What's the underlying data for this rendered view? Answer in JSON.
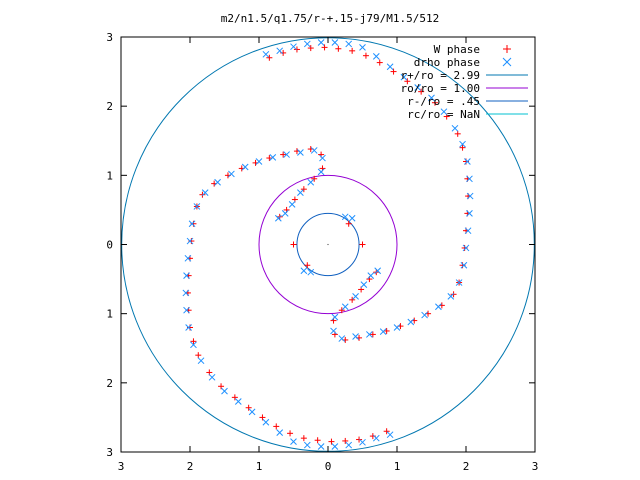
{
  "chart_data": {
    "type": "scatter",
    "title": "m2/n1.5/q1.75/r-+.15-j79/M1.5/512",
    "xlabel": "",
    "ylabel": "",
    "xlim": [
      -3,
      3
    ],
    "ylim": [
      -3,
      3
    ],
    "x_ticks": [
      -3,
      -2,
      -1,
      0,
      1,
      2,
      3
    ],
    "y_ticks": [
      -3,
      -2,
      -1,
      0,
      1,
      2,
      3
    ],
    "x_tick_labels": [
      "3",
      "2",
      "1",
      "0",
      "1",
      "2",
      "3"
    ],
    "y_tick_labels": [
      "3",
      "2",
      "1",
      "0",
      "1",
      "2",
      "3"
    ],
    "grid": false,
    "legend_position": "top-right",
    "legend": [
      {
        "label": "W phase",
        "kind": "marker",
        "marker": "plus",
        "color": "#ff0000"
      },
      {
        "label": "drho phase",
        "kind": "marker",
        "marker": "cross",
        "color": "#1e90ff"
      },
      {
        "label": "r+/ro = 2.99",
        "kind": "line",
        "color": "#0077b0"
      },
      {
        "label": "ro/ro = 1.00",
        "kind": "line",
        "color": "#9400d3"
      },
      {
        "label": "r-/ro = .45",
        "kind": "line",
        "color": "#1060c0"
      },
      {
        "label": "rc/ro = NaN",
        "kind": "line",
        "color": "#00c0d0"
      }
    ],
    "circles": [
      {
        "name": "r+/ro = 2.99",
        "radius": 2.99,
        "color": "#0077b0"
      },
      {
        "name": "ro/ro = 1.00",
        "radius": 1.0,
        "color": "#9400d3"
      },
      {
        "name": "r-/ro = .45",
        "radius": 0.45,
        "color": "#1060c0"
      }
    ],
    "series": [
      {
        "name": "W phase",
        "marker": "plus",
        "color": "#ff0000",
        "points": [
          [
            -0.85,
            2.7
          ],
          [
            -0.65,
            2.77
          ],
          [
            -0.45,
            2.82
          ],
          [
            -0.25,
            2.84
          ],
          [
            -0.05,
            2.85
          ],
          [
            0.15,
            2.83
          ],
          [
            0.35,
            2.8
          ],
          [
            0.55,
            2.73
          ],
          [
            0.75,
            2.63
          ],
          [
            0.95,
            2.5
          ],
          [
            1.15,
            2.36
          ],
          [
            1.35,
            2.21
          ],
          [
            1.55,
            2.05
          ],
          [
            1.72,
            1.85
          ],
          [
            1.88,
            1.6
          ],
          [
            1.95,
            1.4
          ],
          [
            2.0,
            1.2
          ],
          [
            2.02,
            0.95
          ],
          [
            2.03,
            0.7
          ],
          [
            2.02,
            0.45
          ],
          [
            2.0,
            0.2
          ],
          [
            1.98,
            -0.05
          ],
          [
            1.95,
            -0.3
          ],
          [
            1.9,
            -0.55
          ],
          [
            1.82,
            -0.72
          ],
          [
            1.65,
            -0.88
          ],
          [
            1.45,
            -1.0
          ],
          [
            1.25,
            -1.1
          ],
          [
            1.05,
            -1.18
          ],
          [
            0.85,
            -1.25
          ],
          [
            0.65,
            -1.3
          ],
          [
            0.45,
            -1.35
          ],
          [
            0.25,
            -1.38
          ],
          [
            0.1,
            -1.3
          ],
          [
            0.08,
            -1.1
          ],
          [
            0.2,
            -0.95
          ],
          [
            0.35,
            -0.8
          ],
          [
            0.48,
            -0.65
          ],
          [
            0.6,
            -0.5
          ],
          [
            0.7,
            -0.4
          ],
          [
            0.85,
            -2.7
          ],
          [
            0.65,
            -2.77
          ],
          [
            0.45,
            -2.82
          ],
          [
            0.25,
            -2.84
          ],
          [
            0.05,
            -2.85
          ],
          [
            -0.15,
            -2.83
          ],
          [
            -0.35,
            -2.8
          ],
          [
            -0.55,
            -2.73
          ],
          [
            -0.75,
            -2.63
          ],
          [
            -0.95,
            -2.5
          ],
          [
            -1.15,
            -2.36
          ],
          [
            -1.35,
            -2.21
          ],
          [
            -1.55,
            -2.05
          ],
          [
            -1.72,
            -1.85
          ],
          [
            -1.88,
            -1.6
          ],
          [
            -1.95,
            -1.4
          ],
          [
            -2.0,
            -1.2
          ],
          [
            -2.02,
            -0.95
          ],
          [
            -2.03,
            -0.7
          ],
          [
            -2.02,
            -0.45
          ],
          [
            -2.0,
            -0.2
          ],
          [
            -1.98,
            0.05
          ],
          [
            -1.95,
            0.3
          ],
          [
            -1.9,
            0.55
          ],
          [
            -1.82,
            0.72
          ],
          [
            -1.65,
            0.88
          ],
          [
            -1.45,
            1.0
          ],
          [
            -1.25,
            1.1
          ],
          [
            -1.05,
            1.18
          ],
          [
            -0.85,
            1.25
          ],
          [
            -0.65,
            1.3
          ],
          [
            -0.45,
            1.35
          ],
          [
            -0.25,
            1.38
          ],
          [
            -0.1,
            1.3
          ],
          [
            -0.08,
            1.1
          ],
          [
            -0.2,
            0.95
          ],
          [
            -0.35,
            0.8
          ],
          [
            -0.48,
            0.65
          ],
          [
            -0.6,
            0.5
          ],
          [
            -0.7,
            0.4
          ],
          [
            0.3,
            0.3
          ],
          [
            0.5,
            0.0
          ],
          [
            -0.3,
            -0.3
          ],
          [
            -0.5,
            0.0
          ]
        ]
      },
      {
        "name": "drho phase",
        "marker": "cross",
        "color": "#1e90ff",
        "points": [
          [
            -0.9,
            2.75
          ],
          [
            -0.7,
            2.8
          ],
          [
            -0.5,
            2.86
          ],
          [
            -0.3,
            2.9
          ],
          [
            -0.1,
            2.92
          ],
          [
            0.1,
            2.92
          ],
          [
            0.3,
            2.9
          ],
          [
            0.5,
            2.85
          ],
          [
            0.7,
            2.72
          ],
          [
            0.9,
            2.57
          ],
          [
            1.1,
            2.42
          ],
          [
            1.3,
            2.27
          ],
          [
            1.5,
            2.12
          ],
          [
            1.68,
            1.92
          ],
          [
            1.84,
            1.68
          ],
          [
            1.95,
            1.45
          ],
          [
            2.02,
            1.2
          ],
          [
            2.05,
            0.95
          ],
          [
            2.06,
            0.7
          ],
          [
            2.05,
            0.45
          ],
          [
            2.03,
            0.2
          ],
          [
            2.0,
            -0.05
          ],
          [
            1.97,
            -0.3
          ],
          [
            1.9,
            -0.55
          ],
          [
            1.78,
            -0.75
          ],
          [
            1.6,
            -0.9
          ],
          [
            1.4,
            -1.02
          ],
          [
            1.2,
            -1.12
          ],
          [
            1.0,
            -1.2
          ],
          [
            0.8,
            -1.26
          ],
          [
            0.6,
            -1.3
          ],
          [
            0.4,
            -1.33
          ],
          [
            0.2,
            -1.36
          ],
          [
            0.08,
            -1.25
          ],
          [
            0.1,
            -1.05
          ],
          [
            0.25,
            -0.9
          ],
          [
            0.4,
            -0.75
          ],
          [
            0.52,
            -0.58
          ],
          [
            0.62,
            -0.45
          ],
          [
            0.72,
            -0.38
          ],
          [
            0.9,
            -2.75
          ],
          [
            0.7,
            -2.8
          ],
          [
            0.5,
            -2.86
          ],
          [
            0.3,
            -2.9
          ],
          [
            0.1,
            -2.92
          ],
          [
            -0.1,
            -2.92
          ],
          [
            -0.3,
            -2.9
          ],
          [
            -0.5,
            -2.85
          ],
          [
            -0.7,
            -2.72
          ],
          [
            -0.9,
            -2.57
          ],
          [
            -1.1,
            -2.42
          ],
          [
            -1.3,
            -2.27
          ],
          [
            -1.5,
            -2.12
          ],
          [
            -1.68,
            -1.92
          ],
          [
            -1.84,
            -1.68
          ],
          [
            -1.95,
            -1.45
          ],
          [
            -2.02,
            -1.2
          ],
          [
            -2.05,
            -0.95
          ],
          [
            -2.06,
            -0.7
          ],
          [
            -2.05,
            -0.45
          ],
          [
            -2.03,
            -0.2
          ],
          [
            -2.0,
            0.05
          ],
          [
            -1.97,
            0.3
          ],
          [
            -1.9,
            0.55
          ],
          [
            -1.78,
            0.75
          ],
          [
            -1.6,
            0.9
          ],
          [
            -1.4,
            1.02
          ],
          [
            -1.2,
            1.12
          ],
          [
            -1.0,
            1.2
          ],
          [
            -0.8,
            1.26
          ],
          [
            -0.6,
            1.3
          ],
          [
            -0.4,
            1.33
          ],
          [
            -0.2,
            1.36
          ],
          [
            -0.08,
            1.25
          ],
          [
            -0.1,
            1.05
          ],
          [
            -0.25,
            0.9
          ],
          [
            -0.4,
            0.75
          ],
          [
            -0.52,
            0.58
          ],
          [
            -0.62,
            0.45
          ],
          [
            -0.72,
            0.38
          ],
          [
            0.25,
            0.4
          ],
          [
            0.35,
            0.38
          ],
          [
            -0.25,
            -0.4
          ],
          [
            -0.35,
            -0.38
          ]
        ]
      }
    ]
  }
}
